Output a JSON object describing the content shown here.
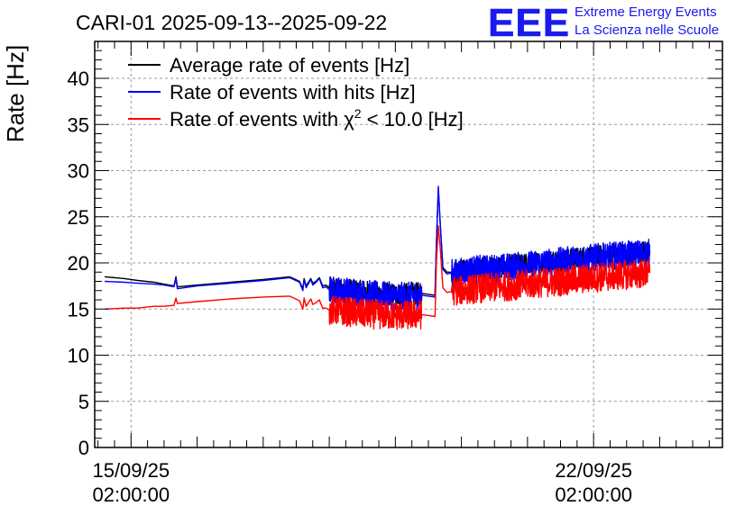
{
  "chart_data": {
    "type": "line",
    "title": "CARI-01 2025-09-13--2025-09-22",
    "xlabel": "",
    "ylabel": "Rate [Hz]",
    "ylim": [
      0,
      44
    ],
    "xlim_days": [
      -0.55,
      8.95
    ],
    "y_ticks": [
      "0",
      "5",
      "10",
      "15",
      "20",
      "25",
      "30",
      "35",
      "40"
    ],
    "x_ticks": [
      {
        "day": 0,
        "date": "15/09/25",
        "time": "02:00:00"
      },
      {
        "day": 7,
        "date": "22/09/25",
        "time": "02:00:00"
      }
    ],
    "grid": true,
    "legend_position": "top-left",
    "series": [
      {
        "name": "Average rate of events [Hz]",
        "legend_label": "Average rate of events [Hz]",
        "color": "#000000",
        "x": [
          -0.4,
          -0.1,
          0.1,
          0.35,
          0.5,
          0.65,
          0.68,
          0.7,
          1.0,
          1.5,
          2.0,
          2.4,
          2.55,
          2.6,
          2.62,
          2.65,
          2.72,
          2.75,
          2.8,
          2.85,
          2.9,
          2.95,
          3.0,
          3.3,
          3.5,
          4.0,
          4.4,
          4.5,
          4.6,
          4.62,
          4.65,
          4.68,
          4.72,
          4.78,
          4.85,
          5.2,
          5.6,
          6.0,
          6.5,
          7.0,
          7.5,
          7.85
        ],
        "y": [
          18.5,
          18.3,
          18.1,
          17.9,
          17.7,
          17.5,
          18.5,
          17.4,
          17.6,
          17.9,
          18.2,
          18.5,
          18.0,
          17.2,
          18.3,
          17.5,
          18.3,
          17.8,
          18.0,
          18.4,
          17.5,
          17.6,
          17.3,
          17.1,
          16.9,
          16.6,
          16.7,
          16.6,
          16.5,
          22.0,
          28.0,
          24.0,
          19.5,
          19.0,
          19.0,
          19.4,
          19.6,
          19.9,
          20.3,
          20.7,
          21.0,
          21.2
        ]
      },
      {
        "name": "Rate of events with hits [Hz]",
        "legend_label": "Rate of events with hits [Hz]",
        "color": "#0000ff",
        "x": [
          -0.4,
          -0.1,
          0.1,
          0.35,
          0.5,
          0.65,
          0.68,
          0.7,
          1.0,
          1.5,
          2.0,
          2.4,
          2.55,
          2.6,
          2.62,
          2.65,
          2.72,
          2.75,
          2.8,
          2.85,
          2.9,
          2.95,
          3.0,
          3.3,
          3.5,
          4.0,
          4.4,
          4.5,
          4.6,
          4.62,
          4.65,
          4.68,
          4.72,
          4.78,
          4.85,
          5.2,
          5.6,
          6.0,
          6.5,
          7.0,
          7.5,
          7.85
        ],
        "y": [
          18.0,
          17.9,
          17.8,
          17.7,
          17.6,
          17.4,
          18.3,
          17.2,
          17.5,
          17.8,
          18.1,
          18.4,
          17.9,
          17.0,
          18.2,
          17.3,
          18.2,
          17.6,
          17.9,
          18.3,
          17.3,
          17.4,
          17.1,
          16.9,
          16.7,
          16.4,
          16.5,
          16.4,
          16.3,
          21.8,
          28.3,
          24.2,
          19.3,
          18.8,
          18.9,
          19.3,
          19.5,
          19.8,
          20.2,
          20.6,
          20.9,
          21.1
        ]
      },
      {
        "name": "Rate of events with chi2 < 10.0 [Hz]",
        "legend_label": "Rate of events with χ",
        "legend_sup": "2",
        "legend_suffix": " < 10.0 [Hz]",
        "color": "#ff0000",
        "x": [
          -0.4,
          -0.1,
          0.1,
          0.35,
          0.5,
          0.65,
          0.68,
          0.7,
          1.0,
          1.5,
          2.0,
          2.4,
          2.55,
          2.6,
          2.62,
          2.65,
          2.72,
          2.75,
          2.8,
          2.85,
          2.9,
          2.95,
          3.0,
          3.3,
          3.5,
          4.0,
          4.4,
          4.5,
          4.6,
          4.62,
          4.65,
          4.68,
          4.72,
          4.78,
          4.85,
          5.2,
          5.6,
          6.0,
          6.5,
          7.0,
          7.5,
          7.85
        ],
        "y": [
          15.0,
          15.1,
          15.1,
          15.3,
          15.3,
          15.4,
          16.2,
          15.6,
          15.8,
          16.1,
          16.3,
          16.4,
          15.9,
          15.0,
          16.2,
          15.3,
          16.1,
          15.5,
          15.7,
          16.0,
          15.1,
          15.1,
          14.9,
          14.7,
          14.5,
          14.3,
          14.4,
          14.3,
          14.2,
          20.0,
          24.0,
          21.5,
          17.3,
          16.8,
          16.9,
          17.2,
          17.4,
          17.7,
          18.0,
          18.4,
          18.7,
          18.9
        ]
      }
    ]
  },
  "logo": {
    "text": "EEE",
    "line1": "Extreme Energy Events",
    "line2": "La Scienza nelle Scuole",
    "color": "#1a1aee"
  }
}
